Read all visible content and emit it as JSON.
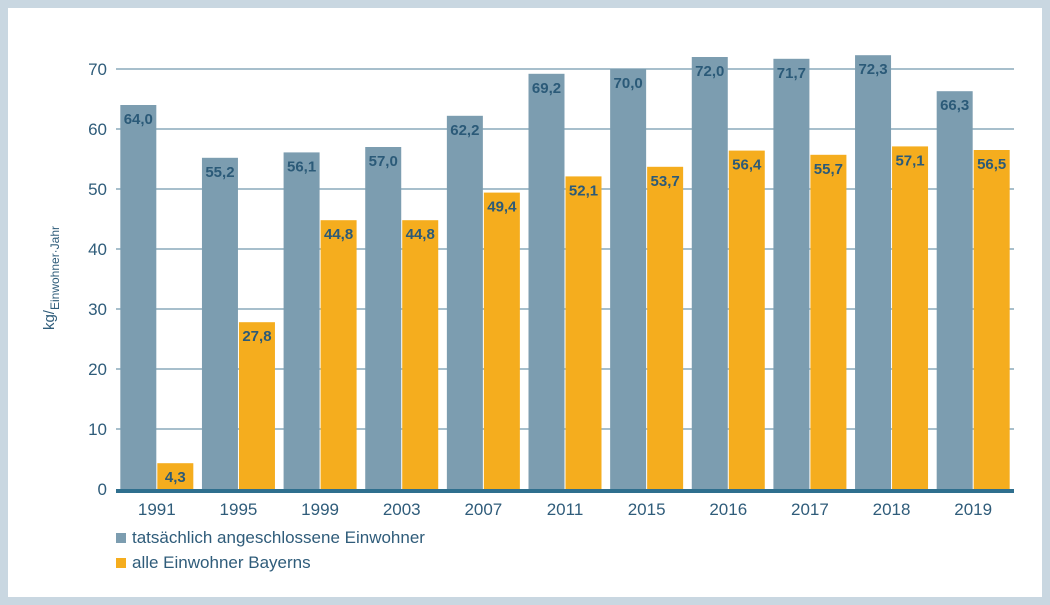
{
  "chart_data": {
    "type": "bar",
    "categories": [
      "1991",
      "1995",
      "1999",
      "2003",
      "2007",
      "2011",
      "2015",
      "2016",
      "2017",
      "2018",
      "2019"
    ],
    "series": [
      {
        "name": "tatsächlich angeschlossene Einwohner",
        "values": [
          64.0,
          55.2,
          56.1,
          57.0,
          62.2,
          69.2,
          70.0,
          72.0,
          71.7,
          72.3,
          66.3
        ],
        "labels": [
          "64,0",
          "55,2",
          "56,1",
          "57,0",
          "62,2",
          "69,2",
          "70,0",
          "72,0",
          "71,7",
          "72,3",
          "66,3"
        ],
        "color": "#7c9db0"
      },
      {
        "name": "alle Einwohner Bayerns",
        "values": [
          4.3,
          27.8,
          44.8,
          44.8,
          49.4,
          52.1,
          53.7,
          56.4,
          55.7,
          57.1,
          56.5
        ],
        "labels": [
          "4,3",
          "27,8",
          "44,8",
          "44,8",
          "49,4",
          "52,1",
          "53,7",
          "56,4",
          "55,7",
          "57,1",
          "56,5"
        ],
        "color": "#f5ad1e"
      }
    ],
    "ylabel_main": "kg/",
    "ylabel_sub": "Einwohner·Jahr",
    "ylim": [
      0,
      70
    ],
    "yticks": [
      "0",
      "10",
      "20",
      "30",
      "40",
      "50",
      "60",
      "70"
    ],
    "grid": true,
    "grid_color": "#4f7f9a",
    "axis_color": "#2f6f8e",
    "legend_position": "bottom-left"
  }
}
